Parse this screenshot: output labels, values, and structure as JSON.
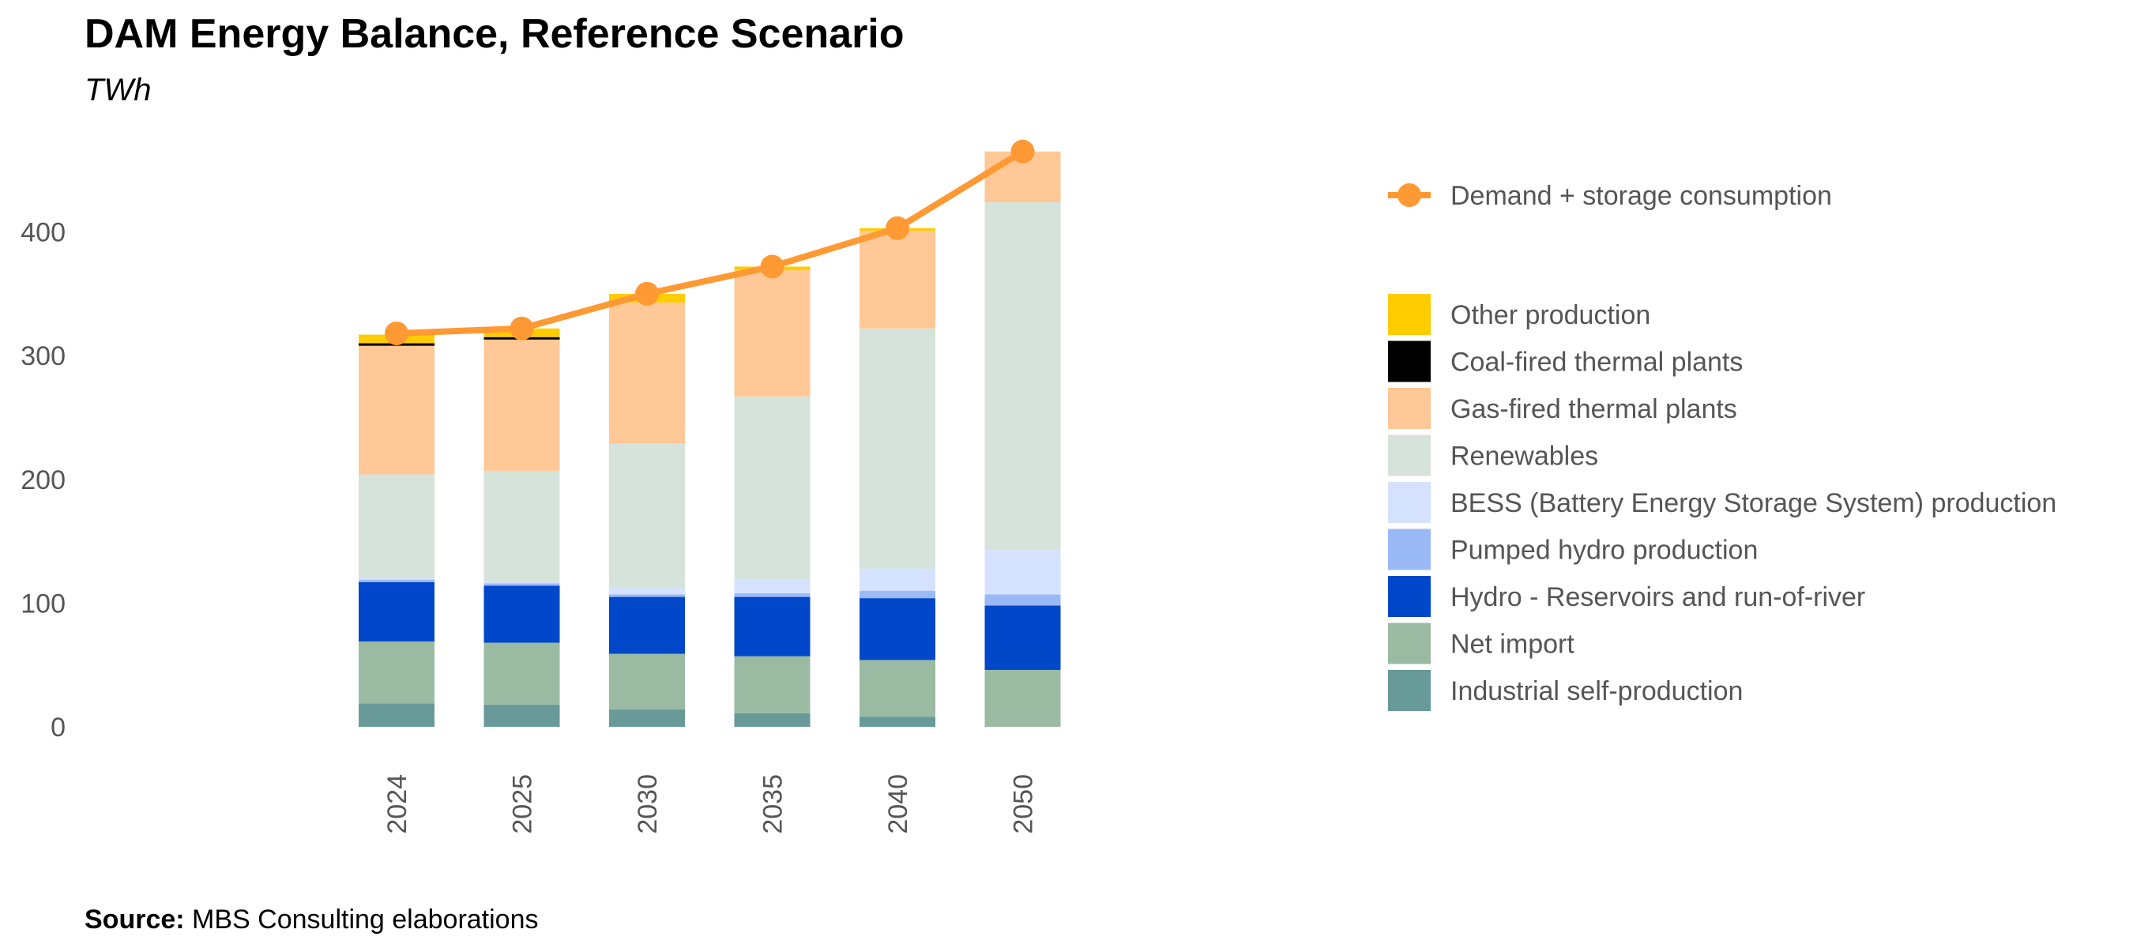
{
  "chart_data": {
    "type": "bar",
    "stacked": true,
    "title": "DAM Energy Balance, Reference Scenario",
    "subtitle": "TWh",
    "categories": [
      "2024",
      "2025",
      "2030",
      "2035",
      "2040",
      "2050"
    ],
    "ylim": [
      0,
      480
    ],
    "yticks": [
      0,
      100,
      200,
      300,
      400
    ],
    "grid": false,
    "legend_position": "right",
    "series": [
      {
        "name": "Industrial self-production",
        "color": "#679A98",
        "values": [
          19,
          18,
          14,
          11,
          8,
          0
        ]
      },
      {
        "name": "Net import",
        "color": "#9ABBA2",
        "values": [
          50,
          50,
          45,
          46,
          46,
          46
        ]
      },
      {
        "name": "Hydro - Reservoirs and run-of-river",
        "color": "#0047C9",
        "values": [
          48,
          46,
          46,
          48,
          50,
          52
        ]
      },
      {
        "name": "Pumped hydro production",
        "color": "#9AB9F7",
        "values": [
          2,
          2,
          2,
          3,
          6,
          9
        ]
      },
      {
        "name": "BESS (Battery Energy Storage System) production",
        "color": "#D5E2FF",
        "values": [
          1,
          1,
          6,
          11,
          18,
          36
        ]
      },
      {
        "name": "Renewables",
        "color": "#D5E3DA",
        "values": [
          84,
          90,
          116,
          148,
          194,
          281
        ]
      },
      {
        "name": "Gas-fired thermal plants",
        "color": "#FFC896",
        "values": [
          104,
          106,
          114,
          102,
          79,
          41
        ]
      },
      {
        "name": "Coal-fired thermal plants",
        "color": "#000000",
        "values": [
          2,
          2,
          0,
          0,
          0,
          0
        ]
      },
      {
        "name": "Other production",
        "color": "#FFCC00",
        "values": [
          7,
          7,
          7,
          3,
          2,
          0
        ]
      }
    ],
    "line_series": {
      "name": "Demand + storage consumption",
      "color": "#FF9933",
      "values": [
        318,
        322,
        350,
        372,
        403,
        465
      ]
    }
  },
  "source": {
    "label": "Source:",
    "text": " MBS Consulting elaborations"
  }
}
